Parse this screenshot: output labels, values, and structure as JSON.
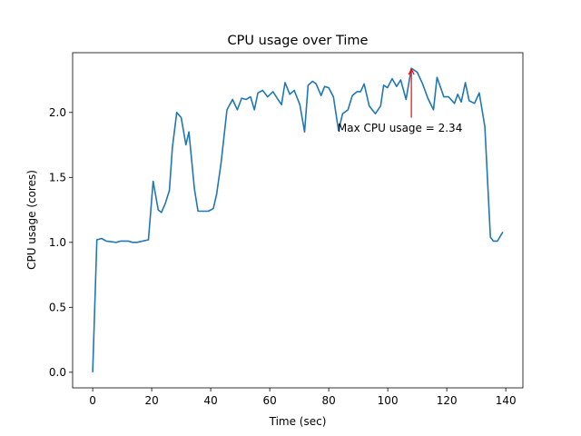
{
  "chart_data": {
    "type": "line",
    "title": "CPU usage over Time",
    "xlabel": "Time (sec)",
    "ylabel": "CPU usage (cores)",
    "xlim": [
      -6.8,
      145.8
    ],
    "ylim": [
      -0.12,
      2.46
    ],
    "xticks": [
      0,
      20,
      40,
      60,
      80,
      100,
      120,
      140
    ],
    "yticks": [
      0.0,
      0.5,
      1.0,
      1.5,
      2.0
    ],
    "ytick_labels": [
      "0.0",
      "0.5",
      "1.0",
      "1.5",
      "2.0"
    ],
    "grid": false,
    "line_color": "#1f77b4",
    "series": [
      {
        "x": [
          0,
          1.4,
          3,
          4.6,
          8,
          9.5,
          12,
          13.5,
          15,
          18.9,
          20.5,
          22.2,
          23.3,
          24.6,
          26,
          27,
          28.5,
          30,
          31.6,
          32.6,
          34.5,
          35.7,
          39.2,
          40.9,
          42,
          43.5,
          45.5,
          47.4,
          49,
          50.5,
          52,
          53.5,
          54.8,
          56,
          57.6,
          59.3,
          61.1,
          62.8,
          64,
          65.2,
          66.8,
          68.3,
          70.2,
          71.8,
          73,
          74.5,
          75.7,
          77.4,
          78.6,
          80,
          81.6,
          83.3,
          84.7,
          86.5,
          88,
          89.6,
          90.8,
          92,
          93.7,
          95.8,
          97.6,
          98.6,
          99.9,
          101.5,
          103,
          104.4,
          106.2,
          108,
          110,
          111.8,
          113.6,
          115.5,
          116.7,
          119,
          120.6,
          122.6,
          123.7,
          124.9,
          126.3,
          127.6,
          129.4,
          131,
          132.9,
          134.8,
          135.8,
          137.2,
          139
        ],
        "y": [
          0.0,
          1.02,
          1.03,
          1.01,
          1.0,
          1.01,
          1.01,
          1.0,
          1.0,
          1.02,
          1.47,
          1.25,
          1.23,
          1.3,
          1.4,
          1.73,
          2.0,
          1.96,
          1.75,
          1.85,
          1.41,
          1.24,
          1.24,
          1.26,
          1.37,
          1.61,
          2.02,
          2.1,
          2.02,
          2.11,
          2.1,
          2.12,
          2.02,
          2.15,
          2.17,
          2.12,
          2.16,
          2.1,
          2.06,
          2.23,
          2.14,
          2.17,
          2.06,
          1.85,
          2.21,
          2.24,
          2.22,
          2.13,
          2.2,
          2.19,
          2.12,
          1.86,
          1.99,
          2.02,
          2.13,
          2.16,
          2.16,
          2.22,
          2.05,
          1.99,
          2.05,
          2.21,
          2.19,
          2.26,
          2.2,
          2.25,
          2.1,
          2.34,
          2.31,
          2.22,
          2.11,
          2.02,
          2.27,
          2.12,
          2.12,
          2.07,
          2.14,
          2.08,
          2.23,
          2.09,
          2.07,
          2.15,
          1.89,
          1.04,
          1.01,
          1.01,
          1.08
        ]
      }
    ],
    "annotation": {
      "text": "Max CPU usage = 2.34",
      "color": "#ff0000",
      "point": [
        108,
        2.34
      ],
      "text_at": [
        83,
        1.88
      ],
      "arrow_tail": [
        108,
        1.96
      ]
    }
  }
}
